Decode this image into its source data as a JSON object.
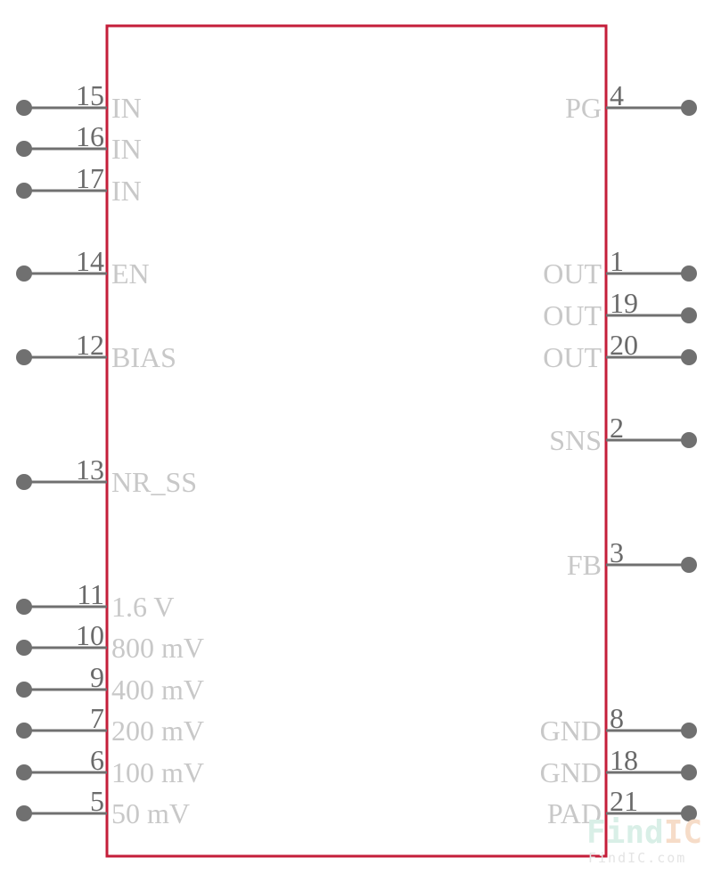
{
  "component": {
    "left_pins": [
      {
        "number": "15",
        "name": "IN"
      },
      {
        "number": "16",
        "name": "IN"
      },
      {
        "number": "17",
        "name": "IN"
      },
      {
        "number": "14",
        "name": "EN"
      },
      {
        "number": "12",
        "name": "BIAS"
      },
      {
        "number": "13",
        "name": "NR_SS"
      },
      {
        "number": "11",
        "name": "1.6 V"
      },
      {
        "number": "10",
        "name": "800 mV"
      },
      {
        "number": "9",
        "name": "400 mV"
      },
      {
        "number": "7",
        "name": "200 mV"
      },
      {
        "number": "6",
        "name": "100 mV"
      },
      {
        "number": "5",
        "name": "50 mV"
      }
    ],
    "right_pins": [
      {
        "number": "4",
        "name": "PG"
      },
      {
        "number": "1",
        "name": "OUT"
      },
      {
        "number": "19",
        "name": "OUT"
      },
      {
        "number": "20",
        "name": "OUT"
      },
      {
        "number": "2",
        "name": "SNS"
      },
      {
        "number": "3",
        "name": "FB"
      },
      {
        "number": "8",
        "name": "GND"
      },
      {
        "number": "18",
        "name": "GND"
      },
      {
        "number": "21",
        "name": "PAD"
      }
    ]
  },
  "colors": {
    "body_outline": "#c41e3a",
    "pin": "#707070",
    "pin_number": "#6a6a6a",
    "pin_name": "#c8c8c8"
  },
  "watermark": {
    "logo_find": "Find",
    "logo_ic": "IC",
    "url": "FindIC.com"
  }
}
